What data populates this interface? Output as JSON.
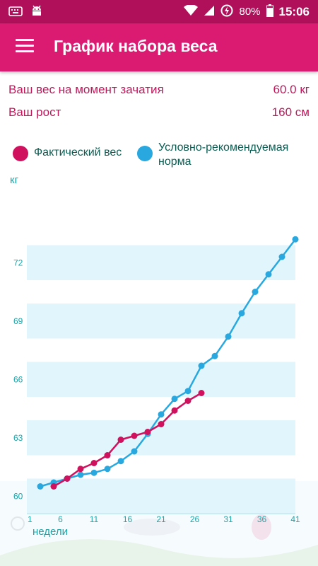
{
  "status_bar": {
    "battery": "80%",
    "time": "15:06",
    "icons": [
      "keyboard-icon",
      "android-icon",
      "wifi-icon",
      "signal-icon",
      "data-saver-icon",
      "battery-icon"
    ]
  },
  "app_bar": {
    "menu_icon": "menu-icon",
    "title": "График набора веса"
  },
  "info": {
    "weight_label": "Ваш вес на момент зачатия",
    "weight_value": "60.0 кг",
    "height_label": "Ваш рост",
    "height_value": "160 см"
  },
  "colors": {
    "actual": "#d0125e",
    "norm": "#29a8e0",
    "band": "#e1f6fc",
    "axis": "#1aa5a9",
    "primary": "#db1b72",
    "status_bar": "#b0105a"
  },
  "chart_data": {
    "type": "line",
    "ylabel": "кг",
    "xlabel": "недели",
    "x_ticks": [
      1,
      6,
      11,
      16,
      21,
      26,
      31,
      36,
      41
    ],
    "y_ticks": [
      60,
      63,
      66,
      69,
      72
    ],
    "xlim": [
      1,
      41
    ],
    "ylim": [
      59.1,
      73.5
    ],
    "series": [
      {
        "name": "Фактический вес",
        "color": "#d0125e",
        "x": [
          5,
          7,
          9,
          11,
          13,
          15,
          17,
          19,
          21,
          23,
          25,
          27
        ],
        "y": [
          60.5,
          60.9,
          61.4,
          61.7,
          62.1,
          62.9,
          63.1,
          63.3,
          63.7,
          64.4,
          64.9,
          65.3
        ]
      },
      {
        "name": "Условно-рекомендуемая норма",
        "color": "#29a8e0",
        "x": [
          3,
          5,
          7,
          9,
          11,
          13,
          15,
          17,
          19,
          21,
          23,
          25,
          27,
          29,
          31,
          33,
          35,
          37,
          39,
          41
        ],
        "y": [
          60.5,
          60.7,
          60.9,
          61.1,
          61.2,
          61.4,
          61.8,
          62.3,
          63.2,
          64.2,
          65.0,
          65.4,
          66.7,
          67.2,
          68.2,
          69.4,
          70.5,
          71.4,
          72.3,
          73.2
        ]
      }
    ]
  }
}
